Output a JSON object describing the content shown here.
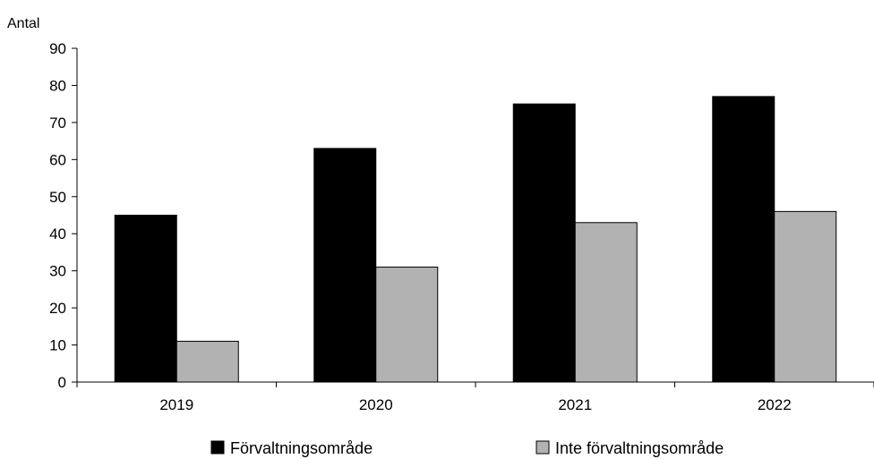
{
  "chart_data": {
    "type": "bar",
    "title": "",
    "xlabel": "",
    "ylabel": "Antal",
    "ylim": [
      0,
      90
    ],
    "ytick_step": 10,
    "categories": [
      "2019",
      "2020",
      "2021",
      "2022"
    ],
    "series": [
      {
        "name": "Förvaltningsområde",
        "color": "#000000",
        "values": [
          45,
          63,
          75,
          77
        ]
      },
      {
        "name": "Inte förvaltningsområde",
        "color": "#b2b2b2",
        "values": [
          11,
          31,
          43,
          46
        ]
      }
    ],
    "grid": false,
    "legend_position": "bottom"
  }
}
